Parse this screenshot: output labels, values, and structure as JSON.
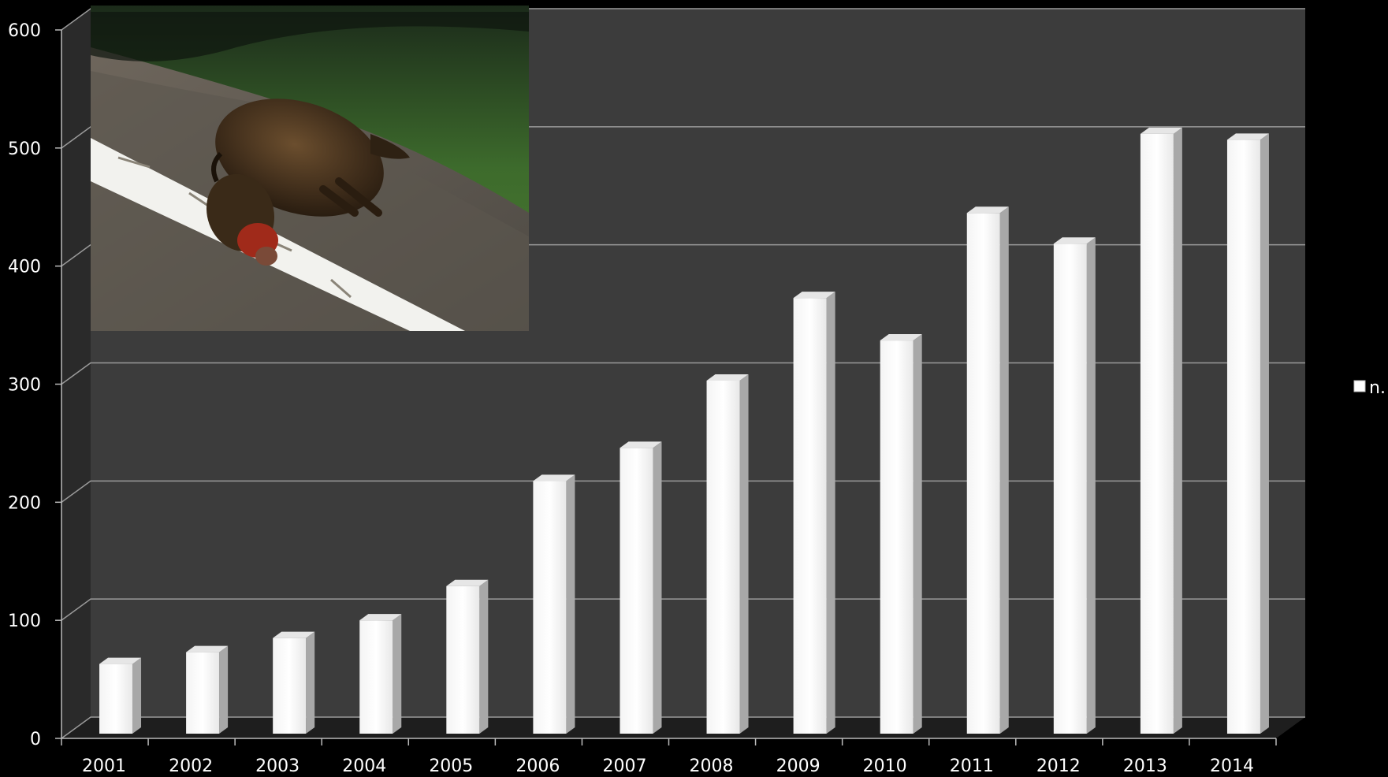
{
  "chart_data": {
    "type": "bar",
    "style": "3d-column",
    "categories": [
      "2001",
      "2002",
      "2003",
      "2004",
      "2005",
      "2006",
      "2007",
      "2008",
      "2009",
      "2010",
      "2011",
      "2012",
      "2013",
      "2014"
    ],
    "series": [
      {
        "name": "n.",
        "values": [
          63,
          73,
          85,
          100,
          129,
          218,
          246,
          303,
          373,
          337,
          445,
          419,
          512,
          507
        ]
      }
    ],
    "y_ticks": [
      "0",
      "100",
      "200",
      "300",
      "400",
      "500",
      "600"
    ],
    "ylim": [
      0,
      600
    ],
    "grid": true,
    "legend": {
      "placement": "right",
      "entries": [
        "n."
      ]
    },
    "colors": {
      "background": "#000000",
      "plot_wall": "#3c3c3c",
      "side_wall": "#2a2a2a",
      "floor": "#1e1e1e",
      "gridline": "#9a9a9a",
      "bar_front": "#ffffff",
      "bar_side": "#a8a8a8",
      "bar_top": "#e6e6e6"
    },
    "inset_image": "photo-of-wild-boar-killed-on-roadside"
  }
}
